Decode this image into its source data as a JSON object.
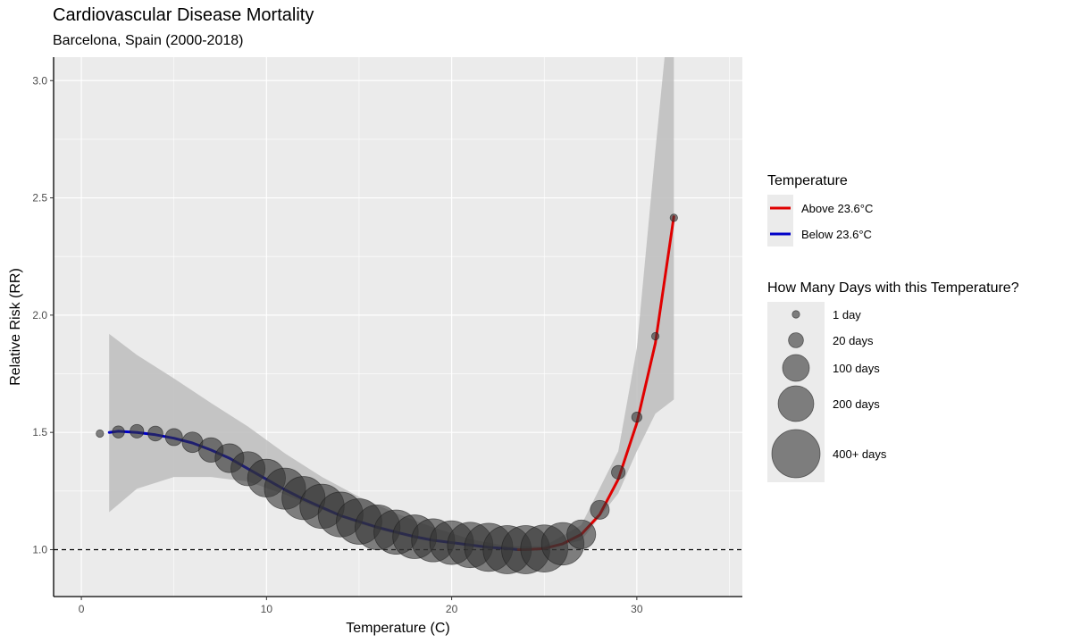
{
  "chart_data": {
    "type": "line",
    "title": "Cardiovascular Disease Mortality",
    "subtitle": "Barcelona, Spain (2000-2018)",
    "xlabel": "Temperature (C)",
    "ylabel": "Relative Risk (RR)",
    "xlim": [
      -1.5,
      35.7
    ],
    "ylim": [
      0.8,
      3.1
    ],
    "x_ticks": [
      0,
      10,
      20,
      30
    ],
    "x_tick_labels": [
      "0",
      "10",
      "20",
      "30"
    ],
    "y_ticks": [
      1.0,
      1.5,
      2.0,
      2.5,
      3.0
    ],
    "y_tick_labels": [
      "1.0",
      "1.5",
      "2.0",
      "2.5",
      "3.0"
    ],
    "reference_line": 1.0,
    "threshold": 23.6,
    "grid": true,
    "colors": {
      "panel": "#ebebeb",
      "grid": "#ffffff",
      "above": "#e00000",
      "below": "#0000c8",
      "ribbon": "#bdbdbd",
      "points": "#333333"
    },
    "series": [
      {
        "name": "Below 23.6°C",
        "color": "#0000c8",
        "x": [
          1.5,
          2,
          3,
          4,
          5,
          6,
          7,
          8,
          9,
          10,
          11,
          12,
          13,
          14,
          15,
          16,
          17,
          18,
          19,
          20,
          21,
          22,
          23,
          23.6
        ],
        "y": [
          1.5,
          1.505,
          1.5,
          1.49,
          1.475,
          1.455,
          1.425,
          1.39,
          1.345,
          1.3,
          1.255,
          1.215,
          1.18,
          1.145,
          1.12,
          1.095,
          1.075,
          1.055,
          1.04,
          1.03,
          1.02,
          1.01,
          1.005,
          1.0
        ]
      },
      {
        "name": "Above 23.6°C",
        "color": "#e00000",
        "x": [
          23.6,
          24,
          25,
          26,
          27,
          28,
          29,
          30,
          31,
          32
        ],
        "y": [
          1.0,
          1.0,
          1.005,
          1.025,
          1.065,
          1.15,
          1.3,
          1.54,
          1.88,
          2.42
        ]
      }
    ],
    "ribbon": {
      "x": [
        1.5,
        3,
        5,
        7,
        9,
        11,
        13,
        15,
        17,
        19,
        21,
        23,
        25,
        27,
        29,
        30,
        31,
        32
      ],
      "lower": [
        1.16,
        1.26,
        1.31,
        1.31,
        1.29,
        1.235,
        1.17,
        1.11,
        1.065,
        1.035,
        1.015,
        1.0,
        1.0,
        1.04,
        1.24,
        1.42,
        1.58,
        1.64
      ],
      "upper": [
        1.92,
        1.83,
        1.73,
        1.625,
        1.525,
        1.41,
        1.31,
        1.225,
        1.155,
        1.095,
        1.045,
        1.015,
        1.015,
        1.105,
        1.42,
        1.86,
        2.7,
        3.5
      ]
    },
    "points": {
      "x": [
        1,
        2,
        3,
        4,
        5,
        6,
        7,
        8,
        9,
        10,
        11,
        12,
        13,
        14,
        15,
        16,
        17,
        18,
        19,
        20,
        21,
        22,
        23,
        24,
        25,
        26,
        27,
        28,
        29,
        30,
        31,
        32
      ],
      "y": [
        1.495,
        1.502,
        1.505,
        1.495,
        1.48,
        1.458,
        1.425,
        1.39,
        1.345,
        1.305,
        1.26,
        1.22,
        1.185,
        1.15,
        1.12,
        1.095,
        1.075,
        1.055,
        1.04,
        1.03,
        1.02,
        1.01,
        1.0,
        1.0,
        1.005,
        1.025,
        1.065,
        1.17,
        1.33,
        1.565,
        1.91,
        2.415
      ],
      "days": [
        1,
        10,
        15,
        20,
        30,
        50,
        80,
        120,
        180,
        230,
        280,
        310,
        330,
        340,
        350,
        340,
        330,
        320,
        310,
        320,
        350,
        400,
        400,
        400,
        380,
        300,
        120,
        40,
        15,
        5,
        1,
        1
      ]
    },
    "legend": {
      "placement": "right",
      "temperature_title": "Temperature",
      "temperature_items": [
        {
          "label": "Above 23.6°C",
          "color": "#e00000"
        },
        {
          "label": "Below 23.6°C",
          "color": "#0000c8"
        }
      ],
      "size_title": "How Many Days with this Temperature?",
      "size_items": [
        {
          "label": "1 day",
          "days": 1
        },
        {
          "label": "20 days",
          "days": 20
        },
        {
          "label": "100 days",
          "days": 100
        },
        {
          "label": "200 days",
          "days": 200
        },
        {
          "label": "400+ days",
          "days": 400
        }
      ]
    }
  }
}
